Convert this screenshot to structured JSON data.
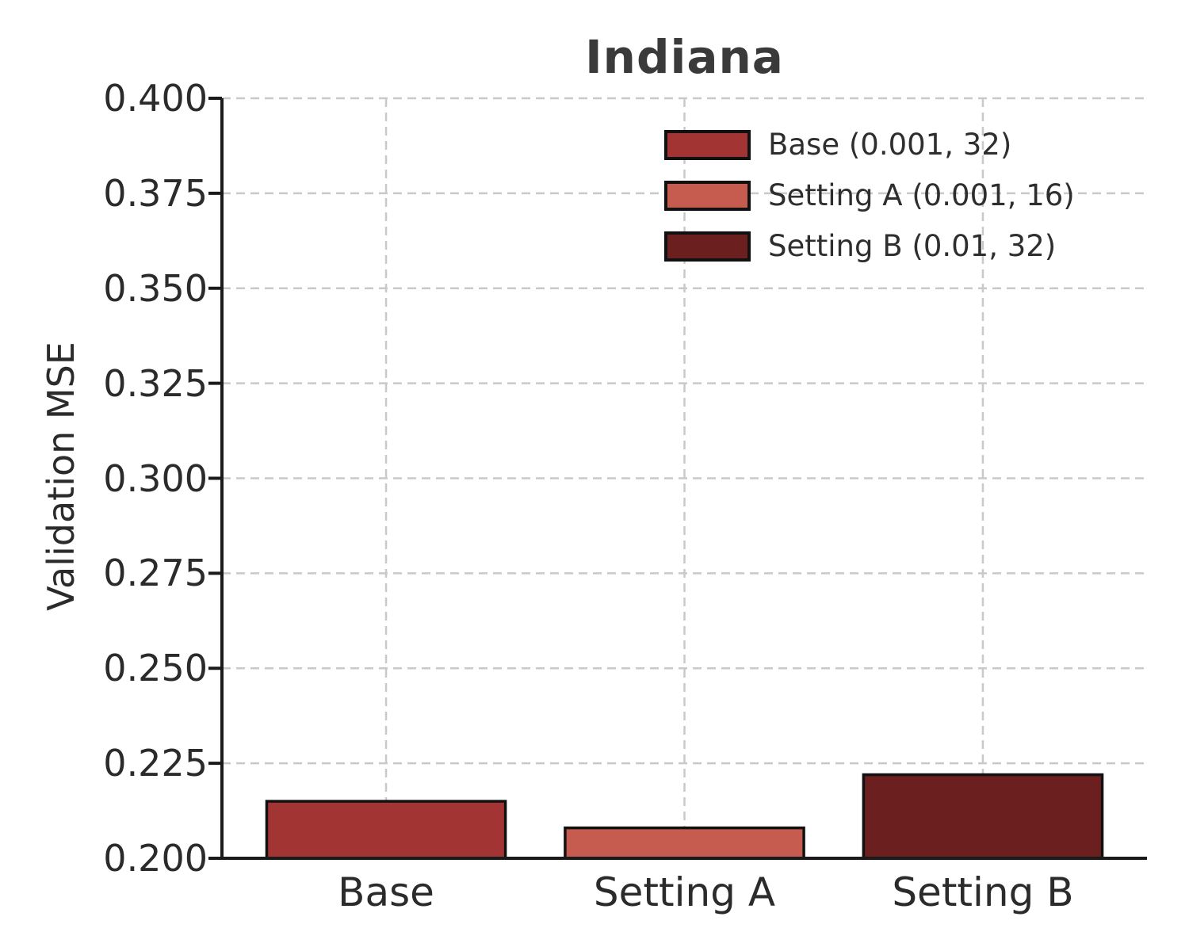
{
  "chart_data": {
    "type": "bar",
    "title": "Indiana",
    "xlabel": "",
    "ylabel": "Validation MSE",
    "categories": [
      "Base",
      "Setting A",
      "Setting B"
    ],
    "values": [
      0.215,
      0.208,
      0.222
    ],
    "bar_colors": [
      "#a33434",
      "#c65b50",
      "#6b1f1f"
    ],
    "bar_edge_color": "#111111",
    "ylim": [
      0.2,
      0.4
    ],
    "yticks": [
      0.2,
      0.225,
      0.25,
      0.275,
      0.3,
      0.325,
      0.35,
      0.375,
      0.4
    ],
    "ytick_decimals": 3,
    "grid": true,
    "grid_style": "dashed",
    "grid_color": "#c9c9c9",
    "spine_color": "#1a1a1a",
    "legend": {
      "position": "upper right",
      "entries": [
        {
          "label": "Base (0.001, 32)",
          "color": "#a33434"
        },
        {
          "label": "Setting A (0.001, 16)",
          "color": "#c65b50"
        },
        {
          "label": "Setting B (0.01, 32)",
          "color": "#6b1f1f"
        }
      ]
    }
  }
}
